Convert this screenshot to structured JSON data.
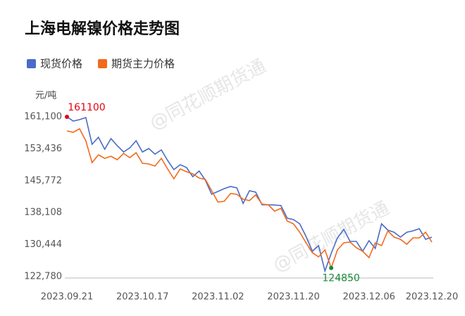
{
  "chart_data": {
    "type": "line",
    "title": "上海电解镍价格走势图",
    "y_label": "元/吨",
    "watermark": "@同花顺期货通",
    "categories": [
      "2023.09.21",
      null,
      null,
      null,
      null,
      null,
      null,
      null,
      null,
      null,
      null,
      null,
      "2023.10.17",
      null,
      null,
      null,
      null,
      null,
      null,
      null,
      null,
      null,
      null,
      null,
      "2023.11.02",
      null,
      null,
      null,
      null,
      null,
      null,
      null,
      null,
      null,
      null,
      null,
      "2023.11.20",
      null,
      null,
      null,
      null,
      null,
      null,
      null,
      null,
      null,
      null,
      null,
      "2023.12.06",
      null,
      null,
      null,
      null,
      null,
      null,
      null,
      null,
      null,
      "2023.12.20"
    ],
    "series": [
      {
        "name": "现货价格",
        "color": "#4a6bc8",
        "values": [
          161100,
          160090,
          160420,
          160930,
          154520,
          156200,
          153340,
          155870,
          154180,
          152660,
          153670,
          155360,
          152660,
          153500,
          152150,
          153170,
          150630,
          148440,
          149620,
          148950,
          146750,
          148100,
          145910,
          142530,
          143210,
          143880,
          144390,
          144050,
          140340,
          143380,
          143040,
          140000,
          140000,
          139950,
          139830,
          136790,
          136460,
          135440,
          132400,
          128860,
          130210,
          124130,
          128350,
          132070,
          134090,
          131220,
          131220,
          128860,
          131390,
          129530,
          135440,
          133920,
          133420,
          132240,
          133420,
          133750,
          134260,
          131730,
          132240
        ]
      },
      {
        "name": "期货主力价格",
        "color": "#f26a1b",
        "values": [
          157720,
          157390,
          158230,
          155360,
          150130,
          151980,
          151140,
          151650,
          150800,
          152320,
          151310,
          152490,
          149960,
          149790,
          149280,
          151140,
          148610,
          146250,
          148610,
          147930,
          147430,
          146410,
          146080,
          143380,
          140680,
          140840,
          142700,
          142530,
          141350,
          141010,
          142360,
          140170,
          140000,
          138480,
          139160,
          136120,
          135440,
          133420,
          130880,
          128520,
          127510,
          129200,
          124850,
          129200,
          130880,
          131050,
          129700,
          128860,
          127340,
          130880,
          130210,
          133750,
          132240,
          131730,
          130550,
          132070,
          132070,
          133420,
          131050
        ]
      }
    ],
    "ylim": [
      122780,
      161100
    ],
    "yticks": [
      {
        "value": 122780,
        "label": "122,780"
      },
      {
        "value": 130444,
        "label": "130,444"
      },
      {
        "value": 138108,
        "label": "138,108"
      },
      {
        "value": 145772,
        "label": "145,772"
      },
      {
        "value": 153436,
        "label": "153,436"
      },
      {
        "value": 161100,
        "label": "161,100"
      }
    ],
    "grid": false,
    "annotations": [
      {
        "text": "161100",
        "color": "#e60012"
      },
      {
        "text": "124850",
        "color": "#1a8a3a"
      }
    ]
  }
}
